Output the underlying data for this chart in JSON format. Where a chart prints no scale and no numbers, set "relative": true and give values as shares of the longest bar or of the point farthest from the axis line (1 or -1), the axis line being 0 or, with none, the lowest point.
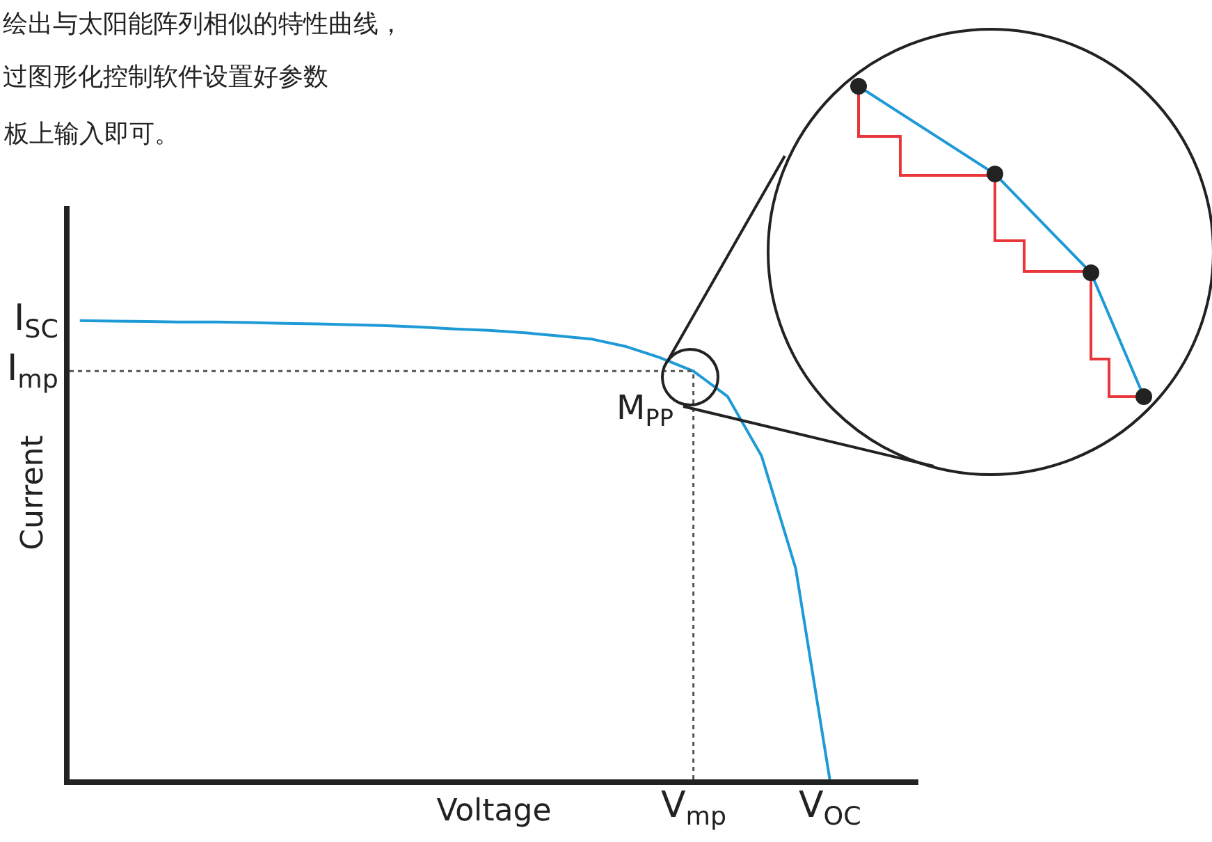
{
  "chart_data": {
    "type": "line",
    "relative": true,
    "xlabel": "Voltage",
    "ylabel": "Current",
    "annotations": [
      "绘出与太阳能阵列相似的特性曲线，",
      "过图形化控制软件设置好参数",
      "板上输入即可。",
      "I$_{SC}$",
      "V$_{OC}$",
      "M$_{PP}$",
      "V$_{mp}$"
    ],
    "categories": [
      null,
      null,
      null,
      null,
      null,
      null,
      null,
      null,
      null,
      null,
      null,
      null,
      null,
      null,
      null,
      null,
      null,
      null,
      null,
      null,
      null,
      null,
      null
    ],
    "series": [
      {
        "color": "#1e9ad6",
        "values": [
          1.0,
          0.999,
          0.998,
          0.997,
          0.997,
          0.996,
          0.994,
          0.993,
          0.991,
          0.989,
          0.986,
          0.982,
          0.979,
          0.974,
          0.967,
          0.96,
          0.944,
          0.92,
          0.89,
          0.835,
          0.705,
          0.46,
          0
        ]
      }
    ],
    "ref_lines": [
      {
        "axis": "y",
        "value": 0.89,
        "label": "I$_{mp}$",
        "color": "#555555",
        "line_style": "dotted"
      }
    ]
  }
}
